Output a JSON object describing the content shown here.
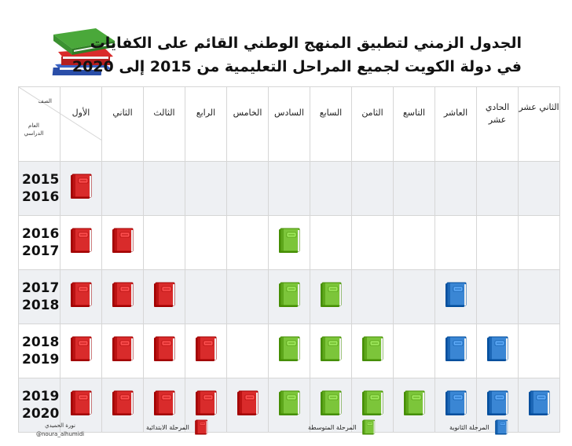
{
  "title": {
    "line1": "الجدول الزمني لتطبيق المنهج الوطني القائم على الكفايات",
    "line2": "في دولة الكويت لجميع المراحل التعليمية من 2015 إلى 2020"
  },
  "corner": {
    "grade_label": "الصف",
    "year_label": "العام الدراسي"
  },
  "grades": [
    "الأول",
    "الثاني",
    "الثالث",
    "الرابع",
    "الخامس",
    "السادس",
    "السابع",
    "الثامن",
    "التاسع",
    "العاشر",
    "الحادي عشر",
    "الثاني عشر"
  ],
  "years": [
    "2015 2016",
    "2016 2017",
    "2017 2018",
    "2018 2019",
    "2019 2020"
  ],
  "stage_colors": {
    "primary": "#d92b2b",
    "intermediate": "#7cc53a",
    "secondary": "#3a86d4"
  },
  "book_icon": "book-icon",
  "schedule": [
    [
      1,
      0,
      0,
      0,
      0,
      0,
      0,
      0,
      0,
      0,
      0,
      0
    ],
    [
      1,
      1,
      0,
      0,
      0,
      1,
      0,
      0,
      0,
      0,
      0,
      0
    ],
    [
      1,
      1,
      1,
      0,
      0,
      1,
      1,
      0,
      0,
      1,
      0,
      0
    ],
    [
      1,
      1,
      1,
      1,
      0,
      1,
      1,
      1,
      0,
      1,
      1,
      0
    ],
    [
      1,
      1,
      1,
      1,
      1,
      1,
      1,
      1,
      1,
      1,
      1,
      1
    ]
  ],
  "legend": {
    "primary": "المرحلة الابتدائية",
    "intermediate": "المرحلة المتوسطة",
    "secondary": "المرحلة الثانوية"
  },
  "author": {
    "name": "نورة الحميدي",
    "handle": "@noura_alhumidi"
  }
}
